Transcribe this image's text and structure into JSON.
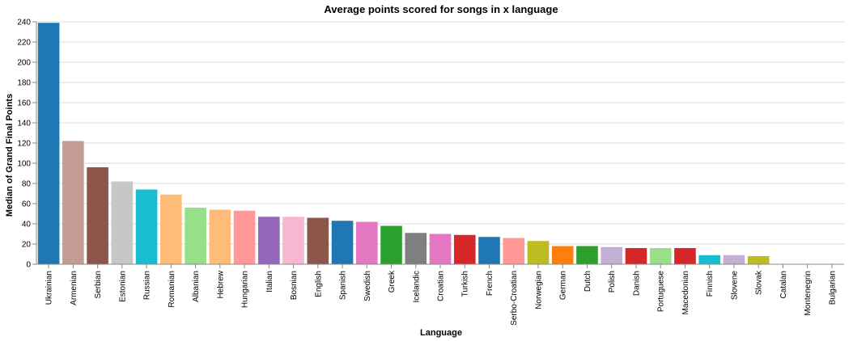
{
  "chart_data": {
    "type": "bar",
    "title": "Average points scored for songs in x language",
    "xlabel": "Language",
    "ylabel": "Median of Grand Final Points",
    "ylim": [
      0,
      240
    ],
    "yticks": [
      "0",
      "20",
      "40",
      "60",
      "80",
      "100",
      "120",
      "140",
      "160",
      "180",
      "200",
      "220",
      "240"
    ],
    "grid": true,
    "categories": [
      "Ukrainian",
      "Armenian",
      "Serbian",
      "Estonian",
      "Russian",
      "Romanian",
      "Albanian",
      "Hebrew",
      "Hungarian",
      "Italian",
      "Bosnian",
      "English",
      "Spanish",
      "Swedish",
      "Greek",
      "Icelandic",
      "Croatian",
      "Turkish",
      "French",
      "Serbo-Croatian",
      "Norwegian",
      "German",
      "Dutch",
      "Polish",
      "Danish",
      "Portuguese",
      "Macedonian",
      "Finnish",
      "Slovene",
      "Slovak",
      "Catalan",
      "Montenegrin",
      "Bulgarian"
    ],
    "values": [
      239,
      122,
      96,
      82,
      74,
      69,
      56,
      54,
      53,
      47,
      47,
      46,
      43,
      42,
      38,
      31,
      30,
      29,
      27,
      26,
      23,
      18,
      18,
      17,
      16,
      16,
      16,
      9,
      9,
      8,
      0,
      0,
      0
    ],
    "colors": [
      "#1f77b4",
      "#c49c94",
      "#8c564b",
      "#c7c7c7",
      "#17becf",
      "#ffbb78",
      "#98df8a",
      "#ffbb78",
      "#ff9896",
      "#9467bd",
      "#f7b6d2",
      "#8c564b",
      "#1f77b4",
      "#e377c2",
      "#2ca02c",
      "#7f7f7f",
      "#e377c2",
      "#d62728",
      "#1f77b4",
      "#ff9896",
      "#bcbd22",
      "#ff7f0e",
      "#2ca02c",
      "#c5b0d5",
      "#d62728",
      "#98df8a",
      "#d62728",
      "#17becf",
      "#c5b0d5",
      "#bcbd22",
      "#1f77b4",
      "#1f77b4",
      "#1f77b4"
    ]
  }
}
